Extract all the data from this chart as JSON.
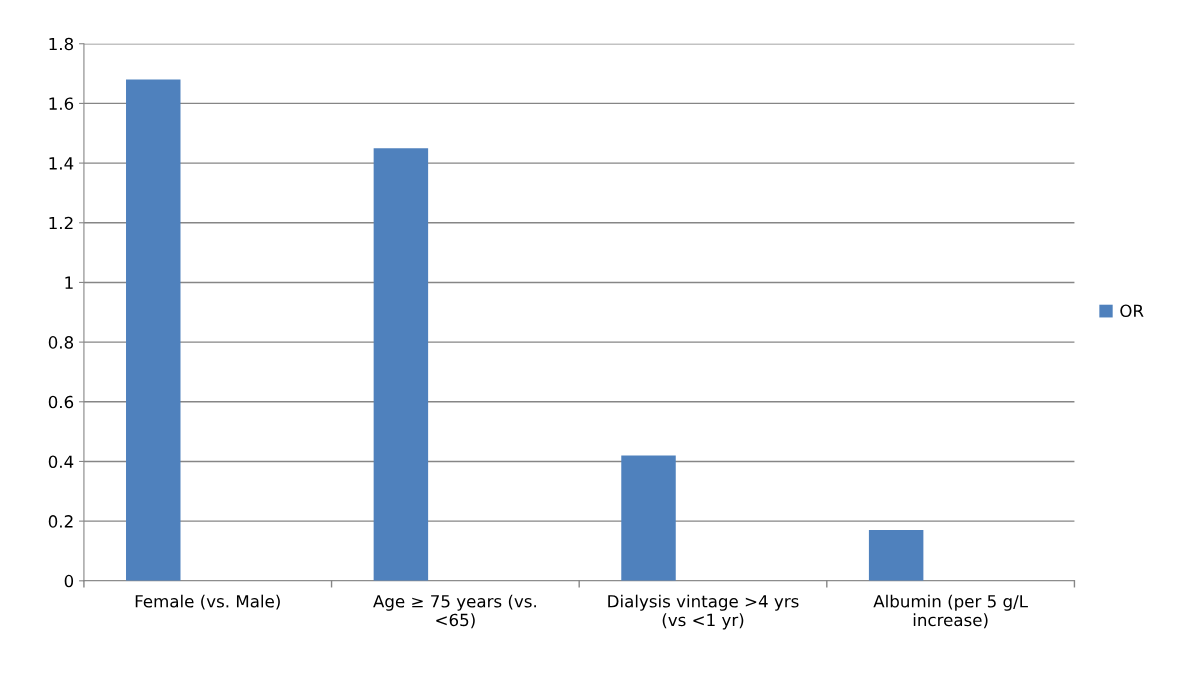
{
  "chart_data": {
    "type": "bar",
    "categories": [
      "Female (vs. Male)",
      "Age ≥ 75 years (vs. <65)",
      "Dialysis vintage >4 yrs (vs <1 yr)",
      "Albumin (per 5 g/L increase)"
    ],
    "series": [
      {
        "name": "OR",
        "color": "#4f81bd",
        "values": [
          1.68,
          1.45,
          0.42,
          0.17
        ]
      }
    ],
    "ylim": [
      0,
      1.8
    ],
    "yticks": [
      0,
      0.2,
      0.4,
      0.6,
      0.8,
      1,
      1.2,
      1.4,
      1.6,
      1.8
    ],
    "grid": "y",
    "legend": "right"
  }
}
